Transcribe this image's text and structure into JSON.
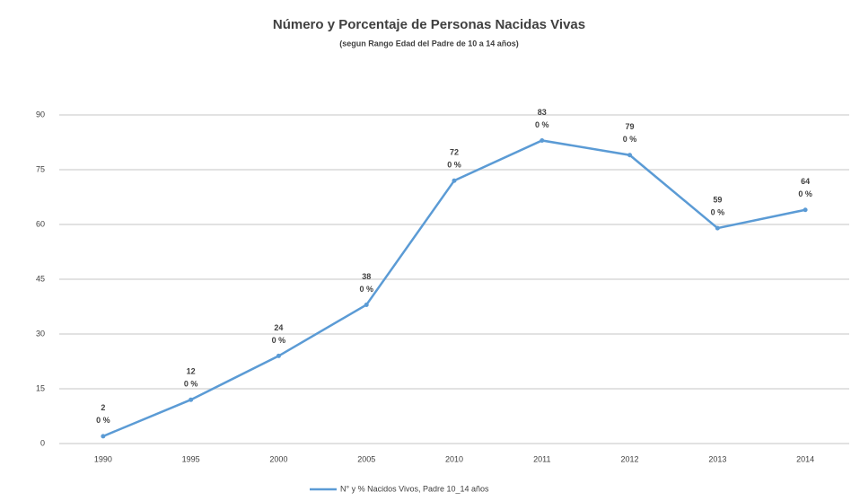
{
  "chart_data": {
    "type": "line",
    "title": "Número y Porcentaje de Personas Nacidas Vivas",
    "subtitle": "(segun Rango Edad del Padre de 10 a 14 años)",
    "categories": [
      "1990",
      "1995",
      "2000",
      "2005",
      "2010",
      "2011",
      "2012",
      "2013",
      "2014"
    ],
    "series": [
      {
        "name": "N° y % Nacidos Vivos, Padre 10_14 años",
        "color": "#5b9bd5",
        "values": [
          2,
          12,
          24,
          38,
          72,
          83,
          79,
          59,
          64
        ],
        "percent_labels": [
          "0 %",
          "0 %",
          "0 %",
          "0 %",
          "0 %",
          "0 %",
          "0 %",
          "0 %",
          "0 %"
        ]
      }
    ],
    "ylim": [
      0,
      90
    ],
    "yticks": [
      0,
      15,
      30,
      45,
      60,
      75,
      90
    ],
    "grid": true,
    "legend": "bottom"
  }
}
